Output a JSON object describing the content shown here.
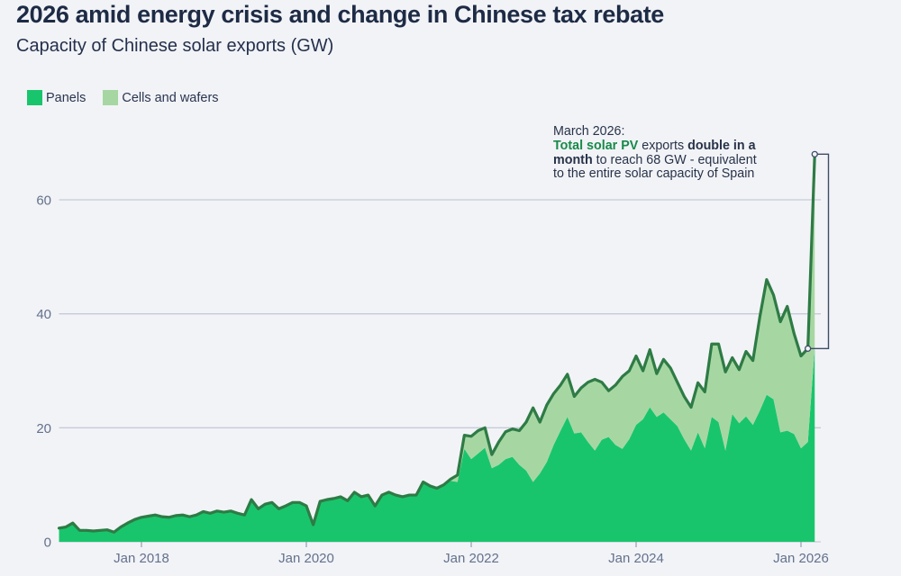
{
  "header": {
    "title": "2026 amid energy crisis and change in Chinese tax rebate",
    "subtitle": "Capacity of Chinese solar exports (GW)"
  },
  "legend": {
    "items": [
      {
        "label": "Panels",
        "color": "#19c56c"
      },
      {
        "label": "Cells and wafers",
        "color": "#a6d7a2"
      }
    ]
  },
  "annotation": {
    "lines": [
      [
        {
          "text": "March 2026:"
        }
      ],
      [
        {
          "text": "Total solar PV",
          "green": true
        },
        {
          "text": " exports "
        },
        {
          "text": "double in a",
          "bold": true
        }
      ],
      [
        {
          "text": "month",
          "bold": true
        },
        {
          "text": " to reach 68 GW - equivalent"
        }
      ],
      [
        {
          "text": "to the entire solar capacity of Spain"
        }
      ]
    ]
  },
  "colors": {
    "background": "#f2f3f7",
    "panels_fill": "#19c56c",
    "cells_fill": "#a6d7a2",
    "total_line": "#2e7b45",
    "grid": "#c6cbd8",
    "tick": "#9aa3b5",
    "axis_text": "#63718c",
    "bracket": "#3d4c66",
    "annotation_green": "#178a4a"
  },
  "chart_data": {
    "type": "area",
    "stacked": true,
    "unit": "GW",
    "title": "Capacity of Chinese solar exports (GW)",
    "x_start_month": "2017-01",
    "x_end_month": "2026-03",
    "ylim": [
      0,
      70
    ],
    "grid": "horizontal",
    "legend_position": "top-left",
    "yticks": [
      0,
      20,
      40,
      60
    ],
    "xticks": [
      {
        "label": "Jan 2018",
        "month_index": 12
      },
      {
        "label": "Jan 2020",
        "month_index": 36
      },
      {
        "label": "Jan 2022",
        "month_index": 60
      },
      {
        "label": "Jan 2024",
        "month_index": 84
      },
      {
        "label": "Jan 2026",
        "month_index": 108
      }
    ],
    "series": [
      {
        "name": "Panels",
        "values": [
          2.4,
          2.6,
          3.3,
          2.0,
          2.0,
          1.9,
          2.0,
          2.1,
          1.7,
          2.6,
          3.3,
          3.9,
          4.3,
          4.5,
          4.7,
          4.4,
          4.3,
          4.6,
          4.7,
          4.4,
          4.7,
          5.3,
          5.0,
          5.4,
          5.2,
          5.4,
          5.0,
          4.7,
          7.4,
          5.8,
          6.6,
          6.9,
          5.8,
          6.3,
          6.9,
          6.9,
          6.3,
          3.0,
          7.1,
          7.4,
          7.6,
          7.9,
          7.2,
          8.7,
          7.9,
          8.2,
          6.3,
          8.2,
          8.7,
          8.2,
          7.9,
          8.2,
          8.2,
          10.5,
          9.8,
          9.4,
          10.0,
          10.7,
          10.5,
          16.3,
          14.5,
          15.5,
          16.5,
          12.9,
          13.5,
          14.5,
          14.9,
          13.5,
          12.5,
          10.5,
          12.0,
          14.0,
          17.0,
          19.5,
          21.9,
          19.0,
          19.2,
          17.5,
          16.0,
          17.9,
          18.4,
          17.0,
          16.3,
          18.0,
          20.5,
          21.5,
          23.6,
          21.9,
          22.7,
          21.5,
          20.3,
          18.0,
          16.0,
          19.2,
          16.4,
          21.9,
          21.0,
          16.0,
          22.4,
          20.8,
          22.0,
          20.5,
          23.0,
          25.8,
          25.0,
          19.2,
          19.5,
          18.9,
          16.4,
          17.5,
          34.0
        ]
      },
      {
        "name": "Cells and wafers",
        "values": [
          0,
          0,
          0,
          0,
          0,
          0,
          0,
          0,
          0,
          0,
          0,
          0,
          0,
          0,
          0,
          0,
          0,
          0,
          0,
          0,
          0,
          0,
          0,
          0,
          0,
          0,
          0,
          0,
          0,
          0,
          0,
          0,
          0,
          0,
          0,
          0,
          0,
          0,
          0,
          0,
          0,
          0,
          0,
          0,
          0,
          0,
          0,
          0,
          0,
          0,
          0,
          0,
          0,
          0,
          0,
          0,
          0,
          0.3,
          1.2,
          2.4,
          4.0,
          4.0,
          3.5,
          2.4,
          4.0,
          4.8,
          4.9,
          6.0,
          8.5,
          13.0,
          9.0,
          10.0,
          9.0,
          8.0,
          7.5,
          6.5,
          7.8,
          10.5,
          12.5,
          10.1,
          8.1,
          10.5,
          12.7,
          12.0,
          12.1,
          8.5,
          10.1,
          7.6,
          9.3,
          9.0,
          7.7,
          7.5,
          7.6,
          8.7,
          9.9,
          12.8,
          13.7,
          13.8,
          9.9,
          9.4,
          11.4,
          11.3,
          16.4,
          20.2,
          18.3,
          19.4,
          21.8,
          17.6,
          16.2,
          16.4,
          34.0
        ]
      }
    ],
    "highlight": {
      "note_month": "March 2026",
      "total_gw": 68,
      "previous_month_total_gw": 33.9,
      "bracket_from_month_index": 109,
      "bracket_to_month_index": 110
    }
  }
}
